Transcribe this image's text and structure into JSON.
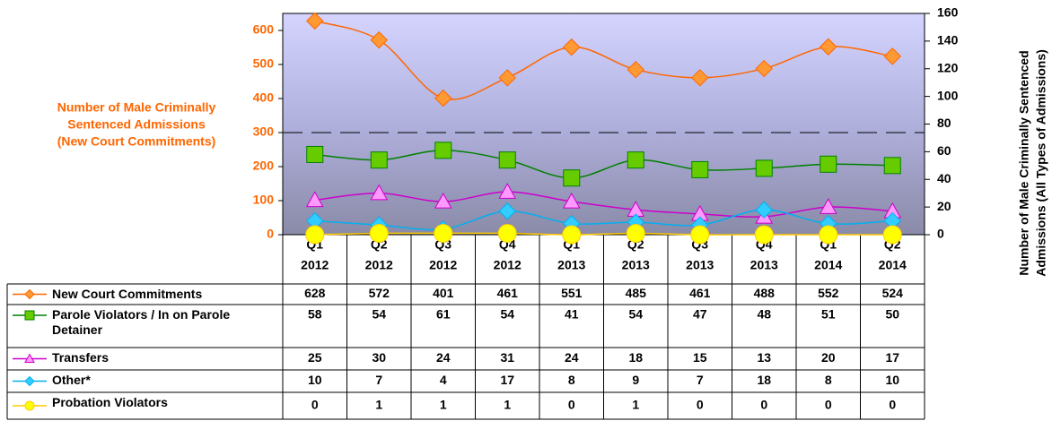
{
  "chart_data": {
    "type": "line",
    "y_label": [
      "Number of Male Criminally",
      "Sentenced Admissions",
      "(New Court Commitments)"
    ],
    "y2_label": [
      "Number of Male Criminally Sentenced",
      "Admissions (All Types of Admissions)"
    ],
    "categories": [
      [
        "Q1",
        "2012"
      ],
      [
        "Q2",
        "2012"
      ],
      [
        "Q3",
        "2012"
      ],
      [
        "Q4",
        "2012"
      ],
      [
        "Q1",
        "2013"
      ],
      [
        "Q2",
        "2013"
      ],
      [
        "Q3",
        "2013"
      ],
      [
        "Q4",
        "2013"
      ],
      [
        "Q1",
        "2014"
      ],
      [
        "Q2",
        "2014"
      ]
    ],
    "ylim": [
      0,
      650
    ],
    "yticks": [
      0,
      100,
      200,
      300,
      400,
      500,
      600
    ],
    "y2lim": [
      0,
      160
    ],
    "y2ticks": [
      0,
      20,
      40,
      60,
      80,
      100,
      120,
      140,
      160
    ],
    "series": [
      {
        "name": "New Court Commitments",
        "color": "#ff6600",
        "marker_color": "#ff9933",
        "marker": "diamond",
        "values": [
          628,
          572,
          401,
          461,
          551,
          485,
          461,
          488,
          552,
          524
        ]
      },
      {
        "name": "Parole Violators / In on Parole Detainer",
        "color": "#008000",
        "marker_color": "#66cc00",
        "marker": "square",
        "axis": "y2",
        "values": [
          58,
          54,
          61,
          54,
          41,
          54,
          47,
          48,
          51,
          50
        ]
      },
      {
        "name": "Transfers",
        "color": "#cc00cc",
        "marker_color": "#ff99ff",
        "marker": "triangle",
        "axis": "y2",
        "values": [
          25,
          30,
          24,
          31,
          24,
          18,
          15,
          13,
          20,
          17
        ]
      },
      {
        "name": "Other*",
        "color": "#00b0f0",
        "marker_color": "#33ccff",
        "marker": "diamond",
        "axis": "y2",
        "values": [
          10,
          7,
          4,
          17,
          8,
          9,
          7,
          18,
          8,
          10
        ]
      },
      {
        "name": "Probation Violators",
        "color": "#ffcc00",
        "marker_color": "#ffff00",
        "marker": "circle",
        "axis": "y2",
        "values": [
          0,
          1,
          1,
          1,
          0,
          1,
          0,
          0,
          0,
          0
        ]
      }
    ]
  }
}
